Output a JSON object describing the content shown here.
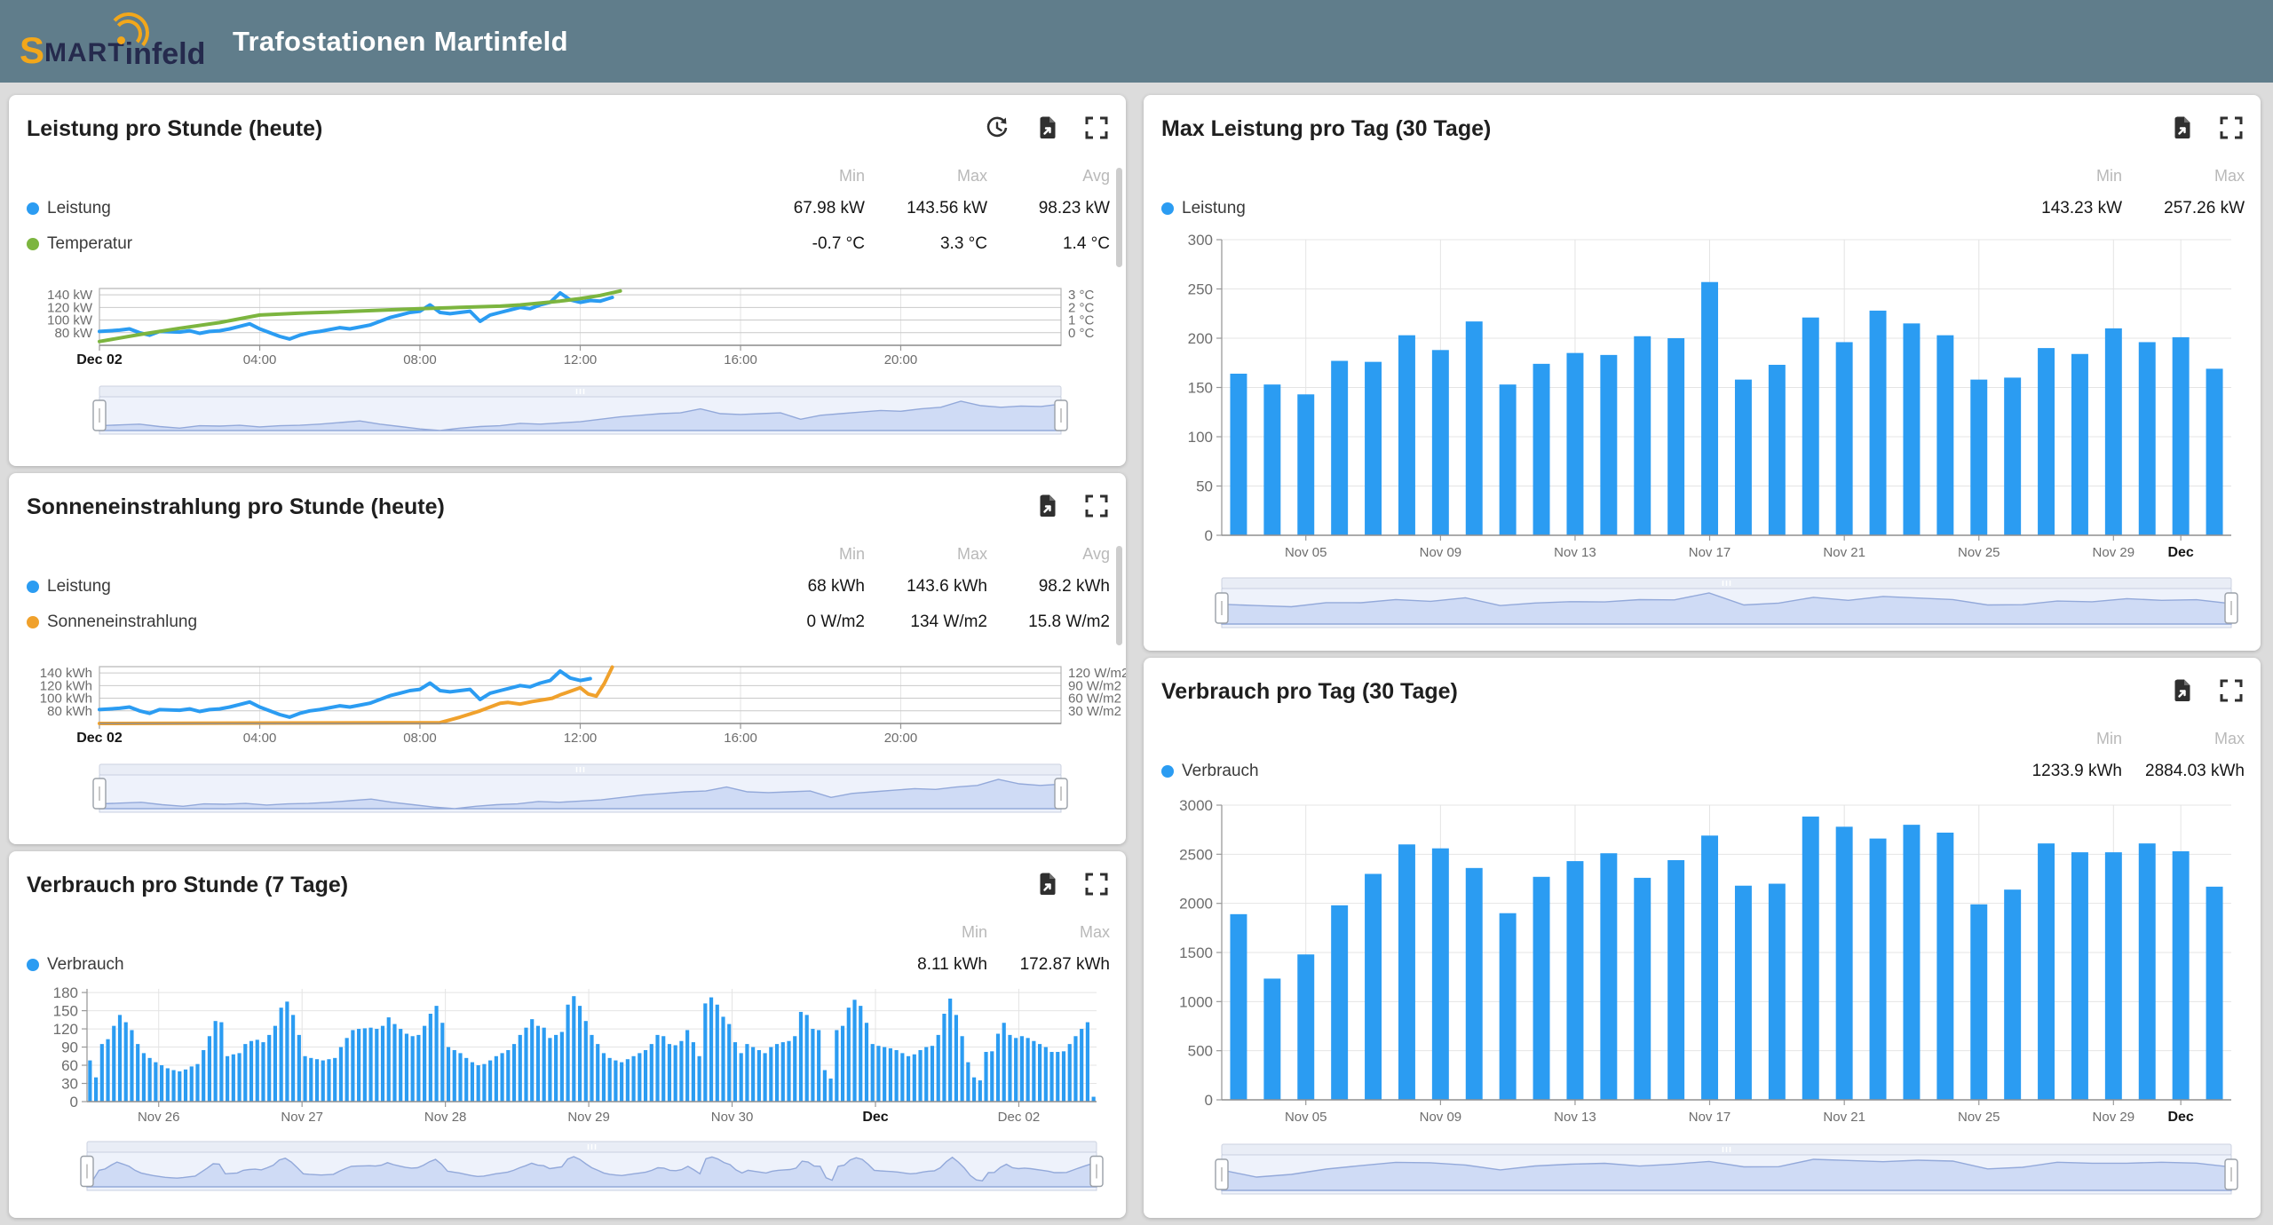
{
  "header": {
    "logo_s": "S",
    "logo_caps": "MART",
    "logo_rest": "infeld",
    "title": "Trafostationen Martinfeld"
  },
  "stat_headers": {
    "min": "Min",
    "max": "Max",
    "avg": "Avg"
  },
  "panels": {
    "p1": {
      "title": "Leistung pro Stunde (heute)",
      "stats": [
        {
          "name": "Leistung",
          "color": "#2b9cf2",
          "min": "67.98 kW",
          "max": "143.56 kW",
          "avg": "98.23 kW"
        },
        {
          "name": "Temperatur",
          "color": "#7cb53f",
          "min": "-0.7 °C",
          "max": "3.3 °C",
          "avg": "1.4 °C"
        }
      ]
    },
    "p2": {
      "title": "Sonneneinstrahlung pro Stunde (heute)",
      "stats": [
        {
          "name": "Leistung",
          "color": "#2b9cf2",
          "min": "68 kWh",
          "max": "143.6 kWh",
          "avg": "98.2 kWh"
        },
        {
          "name": "Sonneneinstrahlung",
          "color": "#f0a12c",
          "min": "0 W/m2",
          "max": "134 W/m2",
          "avg": "15.8 W/m2"
        }
      ]
    },
    "p3": {
      "title": "Verbrauch pro Stunde (7 Tage)",
      "stats": [
        {
          "name": "Verbrauch",
          "color": "#2b9cf2",
          "min": "8.11 kWh",
          "max": "172.87 kWh"
        }
      ]
    },
    "p4": {
      "title": "Max Leistung pro Tag (30 Tage)",
      "stats": [
        {
          "name": "Leistung",
          "color": "#2b9cf2",
          "min": "143.23 kW",
          "max": "257.26 kW"
        }
      ]
    },
    "p5": {
      "title": "Verbrauch pro Tag (30 Tage)",
      "stats": [
        {
          "name": "Verbrauch",
          "color": "#2b9cf2",
          "min": "1233.9 kWh",
          "max": "2884.03 kWh"
        }
      ]
    }
  },
  "chart_data": {
    "p1": {
      "type": "line",
      "title": "Leistung pro Stunde (heute)",
      "x_range": [
        0,
        24
      ],
      "x_ticks": [
        {
          "p": 0,
          "label": "Dec 02",
          "bold": true
        },
        {
          "p": 0.1667,
          "label": "04:00"
        },
        {
          "p": 0.3333,
          "label": "08:00"
        },
        {
          "p": 0.5,
          "label": "12:00"
        },
        {
          "p": 0.6667,
          "label": "16:00"
        },
        {
          "p": 0.8333,
          "label": "20:00"
        }
      ],
      "left_axis": {
        "min": 60,
        "max": 150,
        "ticks": [
          {
            "v": 140,
            "label": "140 kW"
          },
          {
            "v": 120,
            "label": "120 kW"
          },
          {
            "v": 100,
            "label": "100 kW"
          },
          {
            "v": 80,
            "label": "80 kW"
          }
        ]
      },
      "right_axis": {
        "min": -1,
        "max": 3.5,
        "ticks": [
          {
            "v": 3,
            "label": "3 °C"
          },
          {
            "v": 2,
            "label": "2 °C"
          },
          {
            "v": 1,
            "label": "1 °C"
          },
          {
            "v": 0,
            "label": "0 °C"
          }
        ]
      },
      "series": [
        {
          "name": "Leistung",
          "unit": "kW",
          "color": "#2b9cf2",
          "axis": "left",
          "x": [
            0,
            0.5,
            0.75,
            1,
            1.25,
            1.5,
            2,
            2.25,
            2.5,
            2.75,
            3,
            3.25,
            3.5,
            3.75,
            4,
            4.25,
            4.5,
            4.75,
            5,
            5.25,
            5.5,
            6,
            6.25,
            6.5,
            6.75,
            7,
            7.25,
            7.5,
            7.75,
            8,
            8.25,
            8.5,
            8.75,
            9,
            9.25,
            9.5,
            9.75,
            10,
            10.25,
            10.5,
            10.75,
            11,
            11.25,
            11.5,
            11.75,
            12,
            12.25,
            12.5,
            12.8
          ],
          "y": [
            82,
            84,
            86,
            80,
            76,
            82,
            81,
            83,
            79,
            82,
            83,
            86,
            90,
            94,
            86,
            80,
            74,
            70,
            76,
            80,
            82,
            88,
            86,
            89,
            92,
            98,
            104,
            108,
            112,
            114,
            124,
            112,
            110,
            112,
            114,
            98,
            108,
            112,
            116,
            120,
            118,
            124,
            128,
            143,
            132,
            128,
            131,
            130,
            136
          ]
        },
        {
          "name": "Temperatur",
          "unit": "°C",
          "color": "#7cb53f",
          "axis": "right",
          "x": [
            0,
            1,
            2,
            3,
            3.5,
            4,
            5,
            6,
            7,
            8,
            8.5,
            9,
            10,
            10.5,
            11,
            11.5,
            12,
            12.5,
            13
          ],
          "y": [
            -0.7,
            -0.15,
            0.35,
            0.8,
            1.1,
            1.4,
            1.55,
            1.65,
            1.78,
            1.9,
            1.95,
            2.0,
            2.1,
            2.2,
            2.35,
            2.5,
            2.7,
            2.95,
            3.3
          ]
        }
      ]
    },
    "p2": {
      "type": "line",
      "title": "Sonneneinstrahlung pro Stunde (heute)",
      "x_range": [
        0,
        24
      ],
      "x_ticks": [
        {
          "p": 0,
          "label": "Dec 02",
          "bold": true
        },
        {
          "p": 0.1667,
          "label": "04:00"
        },
        {
          "p": 0.3333,
          "label": "08:00"
        },
        {
          "p": 0.5,
          "label": "12:00"
        },
        {
          "p": 0.6667,
          "label": "16:00"
        },
        {
          "p": 0.8333,
          "label": "20:00"
        }
      ],
      "left_axis": {
        "min": 60,
        "max": 150,
        "ticks": [
          {
            "v": 140,
            "label": "140 kWh"
          },
          {
            "v": 120,
            "label": "120 kWh"
          },
          {
            "v": 100,
            "label": "100 kWh"
          },
          {
            "v": 80,
            "label": "80 kWh"
          }
        ]
      },
      "right_axis": {
        "min": 0,
        "max": 135,
        "ticks": [
          {
            "v": 120,
            "label": "120 W/m2"
          },
          {
            "v": 90,
            "label": "90 W/m2"
          },
          {
            "v": 60,
            "label": "60 W/m2"
          },
          {
            "v": 30,
            "label": "30 W/m2"
          }
        ]
      },
      "series": [
        {
          "name": "Leistung",
          "unit": "kWh",
          "color": "#2b9cf2",
          "axis": "left",
          "x": [
            0,
            0.5,
            0.75,
            1,
            1.25,
            1.5,
            2,
            2.25,
            2.5,
            2.75,
            3,
            3.25,
            3.5,
            3.75,
            4,
            4.25,
            4.5,
            4.75,
            5,
            5.25,
            5.5,
            6,
            6.25,
            6.5,
            6.75,
            7,
            7.25,
            7.5,
            7.75,
            8,
            8.25,
            8.5,
            8.75,
            9,
            9.25,
            9.5,
            9.75,
            10,
            10.25,
            10.5,
            10.75,
            11,
            11.25,
            11.5,
            11.75,
            12,
            12.25
          ],
          "y": [
            82,
            84,
            86,
            80,
            76,
            82,
            81,
            83,
            79,
            82,
            83,
            86,
            90,
            94,
            86,
            80,
            74,
            70,
            76,
            80,
            82,
            88,
            86,
            89,
            92,
            98,
            104,
            108,
            112,
            114,
            124,
            112,
            110,
            112,
            114,
            98,
            108,
            112,
            116,
            120,
            118,
            124,
            128,
            143,
            132,
            128,
            131
          ]
        },
        {
          "name": "Sonneneinstrahlung",
          "unit": "W/m2",
          "color": "#f0a12c",
          "axis": "right",
          "x": [
            0,
            8.5,
            9,
            9.5,
            10,
            10.2,
            10.5,
            10.8,
            11,
            11.3,
            11.5,
            11.8,
            12,
            12.2,
            12.4,
            12.6,
            12.8
          ],
          "y": [
            0,
            2,
            15,
            30,
            48,
            50,
            46,
            52,
            55,
            60,
            68,
            78,
            85,
            70,
            65,
            95,
            134
          ]
        }
      ]
    },
    "p3": {
      "type": "bar",
      "title": "Verbrauch pro Stunde (7 Tage)",
      "ylabel": "kWh",
      "ylim": [
        0,
        186
      ],
      "yticks": [
        0,
        30,
        60,
        90,
        120,
        150,
        180
      ],
      "x_ticks": [
        {
          "p": 0.071,
          "label": "Nov 26"
        },
        {
          "p": 0.213,
          "label": "Nov 27"
        },
        {
          "p": 0.355,
          "label": "Nov 28"
        },
        {
          "p": 0.497,
          "label": "Nov 29"
        },
        {
          "p": 0.639,
          "label": "Nov 30"
        },
        {
          "p": 0.781,
          "label": "Dec",
          "bold": true
        },
        {
          "p": 0.923,
          "label": "Dec 02"
        }
      ],
      "values": [
        68,
        40,
        95,
        103,
        125,
        143,
        131,
        118,
        95,
        80,
        72,
        65,
        60,
        55,
        52,
        50,
        53,
        58,
        62,
        85,
        108,
        133,
        131,
        75,
        78,
        80,
        95,
        100,
        102,
        98,
        110,
        125,
        155,
        165,
        143,
        110,
        75,
        72,
        70,
        68,
        70,
        72,
        90,
        105,
        118,
        120,
        121,
        122,
        120,
        125,
        139,
        128,
        120,
        112,
        108,
        110,
        125,
        145,
        158,
        130,
        90,
        85,
        80,
        72,
        65,
        60,
        62,
        68,
        75,
        80,
        85,
        95,
        110,
        122,
        136,
        125,
        122,
        105,
        110,
        115,
        160,
        174,
        158,
        133,
        110,
        95,
        80,
        72,
        68,
        65,
        70,
        75,
        80,
        85,
        95,
        110,
        108,
        95,
        93,
        100,
        118,
        98,
        75,
        162,
        172,
        160,
        140,
        128,
        98,
        80,
        95,
        90,
        85,
        80,
        90,
        95,
        98,
        100,
        108,
        148,
        143,
        120,
        118,
        52,
        38,
        118,
        125,
        155,
        168,
        158,
        130,
        95,
        92,
        90,
        88,
        85,
        80,
        75,
        78,
        85,
        90,
        92,
        110,
        145,
        170,
        143,
        108,
        65,
        40,
        35,
        82,
        83,
        112,
        130,
        110,
        105,
        108,
        105,
        100,
        95,
        90,
        82,
        82,
        83,
        95,
        108,
        120,
        131,
        8
      ],
      "bar_ratio": 0.62
    },
    "p4": {
      "type": "bar",
      "title": "Max Leistung pro Tag (30 Tage)",
      "ylabel": "kW",
      "ylim": [
        0,
        300
      ],
      "yticks": [
        0,
        50,
        100,
        150,
        200,
        250,
        300
      ],
      "x_ticks": [
        {
          "p": 0.0833,
          "label": "Nov 05"
        },
        {
          "p": 0.2167,
          "label": "Nov 09"
        },
        {
          "p": 0.35,
          "label": "Nov 13"
        },
        {
          "p": 0.4833,
          "label": "Nov 17"
        },
        {
          "p": 0.6167,
          "label": "Nov 21"
        },
        {
          "p": 0.75,
          "label": "Nov 25"
        },
        {
          "p": 0.8833,
          "label": "Nov 29"
        },
        {
          "p": 0.95,
          "label": "Dec",
          "bold": true
        }
      ],
      "values": [
        164,
        153,
        143,
        177,
        176,
        203,
        188,
        217,
        153,
        174,
        185,
        183,
        202,
        200,
        257,
        158,
        173,
        221,
        196,
        228,
        215,
        203,
        158,
        160,
        190,
        184,
        210,
        196,
        201,
        169
      ],
      "bar_ratio": 0.5
    },
    "p5": {
      "type": "bar",
      "title": "Verbrauch pro Tag (30 Tage)",
      "ylabel": "kWh",
      "ylim": [
        0,
        3000
      ],
      "yticks": [
        0,
        500,
        1000,
        1500,
        2000,
        2500,
        3000
      ],
      "x_ticks": [
        {
          "p": 0.0833,
          "label": "Nov 05"
        },
        {
          "p": 0.2167,
          "label": "Nov 09"
        },
        {
          "p": 0.35,
          "label": "Nov 13"
        },
        {
          "p": 0.4833,
          "label": "Nov 17"
        },
        {
          "p": 0.6167,
          "label": "Nov 21"
        },
        {
          "p": 0.75,
          "label": "Nov 25"
        },
        {
          "p": 0.8833,
          "label": "Nov 29"
        },
        {
          "p": 0.95,
          "label": "Dec",
          "bold": true
        }
      ],
      "values": [
        1890,
        1234,
        1480,
        1980,
        2300,
        2600,
        2560,
        2360,
        1900,
        2270,
        2430,
        2510,
        2260,
        2440,
        2690,
        2180,
        2200,
        2884,
        2780,
        2660,
        2800,
        2720,
        1990,
        2140,
        2610,
        2520,
        2520,
        2610,
        2530,
        2170
      ],
      "bar_ratio": 0.5
    }
  },
  "colors": {
    "accent_blue": "#2b9cf2",
    "accent_green": "#7cb53f",
    "accent_orange": "#f0a12c",
    "header_bg": "#607d8b"
  }
}
